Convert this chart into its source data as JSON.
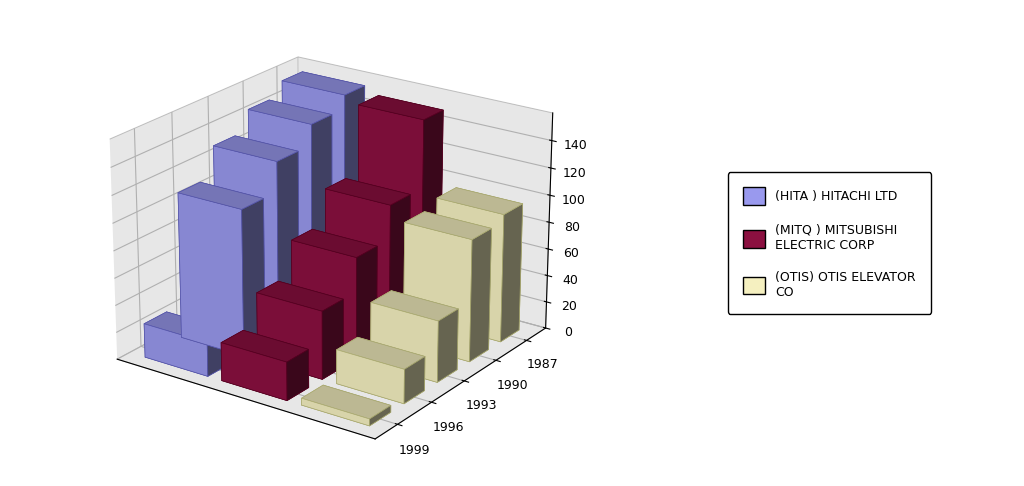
{
  "years": [
    "1999",
    "1996",
    "1993",
    "1990",
    "1987"
  ],
  "series_names": [
    "(HITA ) HITACHI LTD",
    "(MITQ ) MITSUBISHI\nELECTRIC CORP",
    "(OTIS) OTIS ELEVATOR\nCO"
  ],
  "series_values": [
    [
      25,
      108,
      130,
      145,
      155
    ],
    [
      28,
      50,
      75,
      100,
      150
    ],
    [
      5,
      25,
      45,
      90,
      95
    ]
  ],
  "series_colors": [
    "#9999ee",
    "#8b1040",
    "#f5f0c0"
  ],
  "series_edge_colors": [
    "#5555aa",
    "#550020",
    "#aaaa70"
  ],
  "ylim": [
    0,
    160
  ],
  "yticks": [
    0,
    20,
    40,
    60,
    80,
    100,
    120,
    140
  ],
  "background_color": "#ffffff",
  "wall_color": "#d0d0d0",
  "legend_labels": [
    "(HITA ) HITACHI LTD",
    "(MITQ ) MITSUBISHI\nELECTRIC CORP",
    "(OTIS) OTIS ELEVATOR\nCO"
  ],
  "elev": 22,
  "azim": -55
}
